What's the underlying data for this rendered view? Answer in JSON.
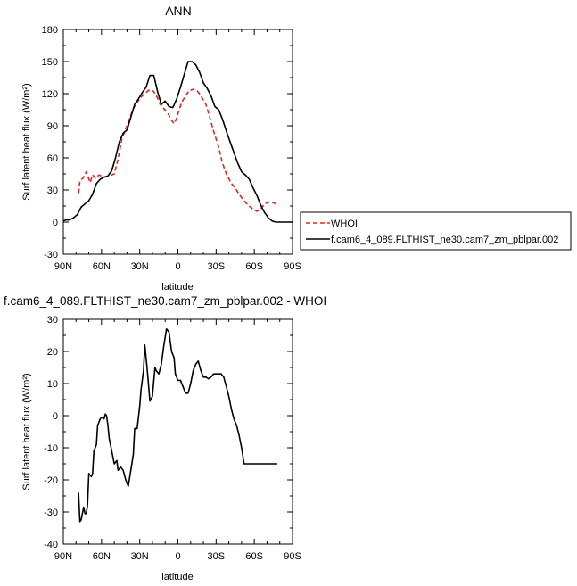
{
  "chart_data": [
    {
      "type": "line",
      "title": "ANN",
      "xlabel": "latitude",
      "ylabel": "Surf latent heat flux (W/m²)",
      "ylim": [
        -30,
        180
      ],
      "xlim": [
        90,
        -90
      ],
      "xticks": [
        90,
        60,
        30,
        0,
        -30,
        -60,
        -90
      ],
      "xtick_labels": [
        "90N",
        "60N",
        "30N",
        "0",
        "30S",
        "60S",
        "90S"
      ],
      "yticks": [
        -30,
        0,
        30,
        60,
        90,
        120,
        150,
        180
      ],
      "ytick_labels": [
        "-30",
        "0",
        "30",
        "60",
        "90",
        "120",
        "150",
        "180"
      ],
      "grid": false,
      "legend_position": "right",
      "series": [
        {
          "name": "WHOI",
          "color": "#e8231f",
          "dash": "dashed",
          "x": [
            78,
            77,
            74,
            72,
            69,
            67,
            65,
            62,
            60,
            57,
            54,
            50,
            47,
            44,
            40,
            37,
            35,
            32,
            28,
            25,
            22,
            19,
            16,
            14,
            11,
            8,
            5,
            3,
            1,
            -1,
            -3,
            -6,
            -9,
            -12,
            -15,
            -18,
            -22,
            -25,
            -28,
            -32,
            -35,
            -38,
            -42,
            -45,
            -48,
            -52,
            -55,
            -58,
            -62,
            -65,
            -68,
            -72,
            -75,
            -77,
            -78
          ],
          "y": [
            27,
            38,
            42,
            47,
            37,
            44,
            41,
            44,
            43,
            42,
            43,
            45,
            59,
            78,
            90,
            100,
            106,
            112,
            118,
            121,
            124,
            122,
            116,
            110,
            106,
            102,
            95,
            92,
            97,
            105,
            112,
            118,
            123,
            124,
            123,
            118,
            110,
            98,
            85,
            70,
            55,
            45,
            36,
            32,
            26,
            20,
            16,
            13,
            10,
            12,
            17,
            19,
            18,
            17,
            17
          ]
        },
        {
          "name": "f.cam6_4_089.FLTHIST_ne30.cam7_zm_pblpar.002",
          "color": "#000000",
          "dash": "solid",
          "x": [
            90,
            88,
            85,
            82,
            79,
            76,
            73,
            70,
            67,
            64,
            61,
            58,
            55,
            52,
            49,
            46,
            43,
            40,
            37,
            34,
            31,
            28,
            25,
            22,
            19,
            16,
            13,
            10,
            7,
            4,
            1,
            -2,
            -5,
            -8,
            -11,
            -14,
            -17,
            -20,
            -23,
            -26,
            -29,
            -32,
            -35,
            -38,
            -41,
            -44,
            -47,
            -50,
            -53,
            -56,
            -59,
            -62,
            -65,
            -68,
            -71,
            -74,
            -77,
            -80,
            -83,
            -86,
            -90
          ],
          "y": [
            1,
            2,
            2,
            4,
            7,
            14,
            17,
            20,
            26,
            36,
            40,
            42,
            43,
            48,
            60,
            75,
            83,
            86,
            98,
            110,
            115,
            121,
            126,
            137,
            137,
            122,
            110,
            113,
            108,
            107,
            115,
            126,
            138,
            150,
            150,
            147,
            140,
            130,
            125,
            118,
            108,
            105,
            96,
            85,
            75,
            65,
            55,
            47,
            44,
            40,
            32,
            25,
            16,
            9,
            4,
            1,
            0,
            0,
            0,
            0,
            0
          ]
        }
      ]
    },
    {
      "type": "line",
      "title": "f.cam6_4_089.FLTHIST_ne30.cam7_zm_pblpar.002 - WHOI",
      "xlabel": "latitude",
      "ylabel": "Surf latent heat flux (W/m²)",
      "ylim": [
        -40,
        30
      ],
      "xlim": [
        90,
        -90
      ],
      "xticks": [
        90,
        60,
        30,
        0,
        -30,
        -60,
        -90
      ],
      "xtick_labels": [
        "90N",
        "60N",
        "30N",
        "0",
        "30S",
        "60S",
        "90S"
      ],
      "yticks": [
        -40,
        -30,
        -20,
        -10,
        0,
        10,
        20,
        30
      ],
      "ytick_labels": [
        "-40",
        "-30",
        "-20",
        "-10",
        "0",
        "10",
        "20",
        "30"
      ],
      "grid": false,
      "series": [
        {
          "color": "#000000",
          "dash": "solid",
          "x": [
            78,
            77,
            76,
            74,
            73,
            72,
            71,
            70,
            68,
            67,
            66,
            64,
            63,
            61,
            60,
            58,
            57,
            56,
            55,
            54,
            52,
            50,
            48,
            47,
            45,
            43,
            41,
            39,
            37,
            35,
            34,
            32,
            30,
            29,
            27,
            26,
            24,
            22,
            20,
            18,
            17,
            15,
            13,
            11,
            9,
            7,
            5,
            3,
            2,
            0,
            -2,
            -4,
            -6,
            -8,
            -10,
            -12,
            -14,
            -16,
            -18,
            -20,
            -22,
            -24,
            -26,
            -28,
            -30,
            -32,
            -34,
            -36,
            -38,
            -40,
            -42,
            -44,
            -46,
            -48,
            -50,
            -52,
            -54,
            -56,
            -58,
            -60,
            -62,
            -64,
            -66,
            -68,
            -70,
            -72,
            -74,
            -76,
            -78
          ],
          "y": [
            -24,
            -33,
            -32.5,
            -28.5,
            -30.5,
            -30.5,
            -28,
            -18,
            -19,
            -18,
            -11,
            -9,
            -3,
            -1,
            -0.5,
            -1,
            0.5,
            0,
            -3,
            -7,
            -11,
            -15,
            -14,
            -17,
            -16,
            -17,
            -20,
            -22,
            -17,
            -12,
            -4,
            -4,
            3,
            8,
            14,
            22,
            14,
            4.5,
            6,
            15,
            14,
            13,
            16,
            22,
            27,
            26,
            20,
            18,
            13,
            11,
            11,
            9,
            7,
            7,
            10,
            14,
            16,
            17,
            14,
            12,
            12,
            11.5,
            12,
            13,
            13,
            13,
            13,
            12,
            9,
            6,
            2,
            -1,
            -3,
            -6,
            -10,
            -15,
            -15,
            -15,
            -15,
            -15,
            -15,
            -15,
            -15,
            -15,
            -15,
            -15,
            -15,
            -15,
            -15
          ]
        }
      ]
    }
  ]
}
